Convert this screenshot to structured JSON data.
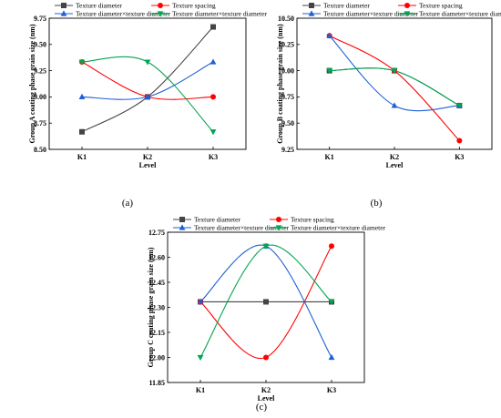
{
  "chart_data": [
    {
      "type": "line",
      "panel_label": "(a)",
      "xlabel": "Level",
      "ylabel": "Group A coating phase grain size (nm)",
      "categories": [
        "K1",
        "K2",
        "K3"
      ],
      "ylim": [
        8.5,
        9.75
      ],
      "yticks": [
        "8.50",
        "8.75",
        "9.00",
        "9.25",
        "9.50",
        "9.75"
      ],
      "legend_position": "top",
      "series": [
        {
          "name": "Texture diameter",
          "values": [
            8.667,
            9.0,
            9.667
          ],
          "color": "#444444",
          "marker": "square"
        },
        {
          "name": "Texture spacing",
          "values": [
            9.333,
            9.0,
            9.0
          ],
          "color": "#ff0000",
          "marker": "circle"
        },
        {
          "name": "Texture diameter×texture diameter",
          "values": [
            9.0,
            9.0,
            9.333
          ],
          "color": "#1f5fd6",
          "marker": "triangle-up"
        },
        {
          "name": "Texture diameter×texture diameter",
          "values": [
            9.333,
            9.333,
            8.667
          ],
          "color": "#00a650",
          "marker": "triangle-down"
        }
      ]
    },
    {
      "type": "line",
      "panel_label": "(b)",
      "xlabel": "Level",
      "ylabel": "Group B coating phase grain size (nm)",
      "categories": [
        "K1",
        "K2",
        "K3"
      ],
      "ylim": [
        9.25,
        10.5
      ],
      "yticks": [
        "9.25",
        "9.50",
        "9.75",
        "10.00",
        "10.25",
        "10.50"
      ],
      "legend_position": "top",
      "series": [
        {
          "name": "Texture diameter",
          "values": [
            10.0,
            10.0,
            9.667
          ],
          "color": "#444444",
          "marker": "square"
        },
        {
          "name": "Texture spacing",
          "values": [
            10.333,
            10.0,
            9.333
          ],
          "color": "#ff0000",
          "marker": "circle"
        },
        {
          "name": "Texture diameter×texture diameter",
          "values": [
            10.333,
            9.667,
            9.667
          ],
          "color": "#1f5fd6",
          "marker": "triangle-up"
        },
        {
          "name": "Texture diameter×texture diameter",
          "values": [
            10.0,
            10.0,
            9.667
          ],
          "color": "#00a650",
          "marker": "triangle-down"
        }
      ]
    },
    {
      "type": "line",
      "panel_label": "(c)",
      "xlabel": "Level",
      "ylabel": "Group C coating phase grain size (nm)",
      "categories": [
        "K1",
        "K2",
        "K3"
      ],
      "ylim": [
        11.85,
        12.75
      ],
      "yticks": [
        "11.85",
        "12.00",
        "12.15",
        "12.30",
        "12.45",
        "12.60",
        "12.75"
      ],
      "legend_position": "top",
      "series": [
        {
          "name": "Texture diameter",
          "values": [
            12.333,
            12.333,
            12.333
          ],
          "color": "#444444",
          "marker": "square"
        },
        {
          "name": "Texture spacing",
          "values": [
            12.333,
            12.0,
            12.667
          ],
          "color": "#ff0000",
          "marker": "circle"
        },
        {
          "name": "Texture diameter×texture diameter",
          "values": [
            12.333,
            12.667,
            12.0
          ],
          "color": "#1f5fd6",
          "marker": "triangle-up"
        },
        {
          "name": "Texture diameter×texture diameter",
          "values": [
            12.0,
            12.667,
            12.333
          ],
          "color": "#00a650",
          "marker": "triangle-down"
        }
      ]
    }
  ]
}
